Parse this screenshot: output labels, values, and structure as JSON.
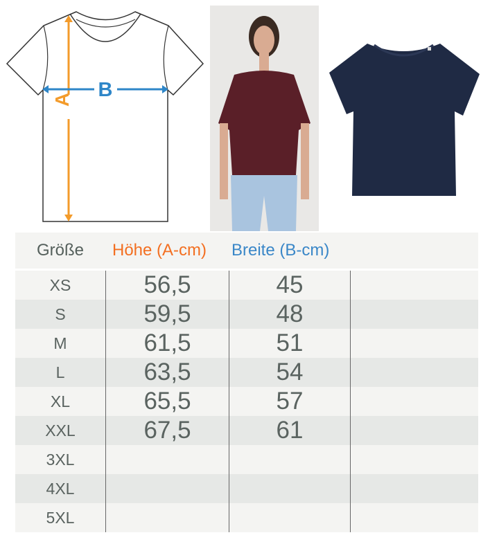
{
  "diagram": {
    "label_a": "A",
    "label_b": "B",
    "color_a": "#f39b2b",
    "color_b": "#2e86c8"
  },
  "header": {
    "size": "Größe",
    "height": "Höhe (A-cm)",
    "width": "Breite (B-cm)",
    "color_size": "#55605c",
    "color_height": "#f36f21",
    "color_width": "#3a87c8"
  },
  "rows": [
    {
      "size": "XS",
      "height": "56,5",
      "width": "45"
    },
    {
      "size": "S",
      "height": "59,5",
      "width": "48"
    },
    {
      "size": "M",
      "height": "61,5",
      "width": "51"
    },
    {
      "size": "L",
      "height": "63,5",
      "width": "54"
    },
    {
      "size": "XL",
      "height": "65,5",
      "width": "57"
    },
    {
      "size": "XXL",
      "height": "67,5",
      "width": "61"
    },
    {
      "size": "3XL",
      "height": "",
      "width": ""
    },
    {
      "size": "4XL",
      "height": "",
      "width": ""
    },
    {
      "size": "5XL",
      "height": "",
      "width": ""
    }
  ],
  "product": {
    "shirt_color": "#1f2a44",
    "model_shirt_color": "#5a1f28",
    "jeans_color": "#a9c4df"
  }
}
